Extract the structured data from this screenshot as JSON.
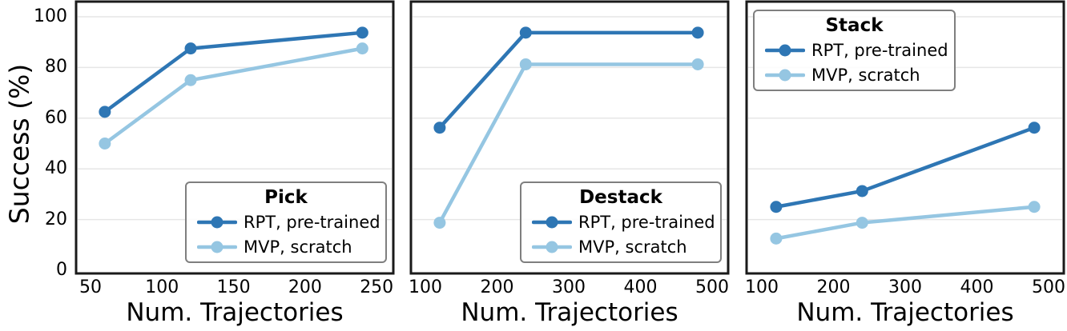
{
  "figure": {
    "ylabel": "Success (%)",
    "xlabel": "Num. Trajectories",
    "yticks": [
      0,
      20,
      40,
      60,
      80,
      100
    ],
    "ylim": [
      0,
      100
    ],
    "grid": "horizontal",
    "colors": {
      "rpt_blue": "#2e76b4",
      "mvp_light_blue": "#95c6e2",
      "gridline": "#e6e6e6",
      "spine": "#1a1a1a",
      "legend_border": "#7f7f7f",
      "text": "#000000"
    }
  },
  "chart_data": [
    {
      "type": "line",
      "title": "Pick",
      "xlabel": "Num. Trajectories",
      "ylabel": "Success (%)",
      "x": [
        60,
        120,
        240
      ],
      "xticks": [
        50,
        100,
        150,
        200,
        250
      ],
      "ylim": [
        0,
        105
      ],
      "grid": "horizontal",
      "legend_position": "lower right",
      "series": [
        {
          "name": "RPT, pre-trained",
          "values": [
            62.5,
            87.5,
            93.75
          ],
          "color": "#2e76b4"
        },
        {
          "name": "MVP, scratch",
          "values": [
            50,
            75,
            87.5
          ],
          "color": "#95c6e2"
        }
      ]
    },
    {
      "type": "line",
      "title": "Destack",
      "xlabel": "Num. Trajectories",
      "ylabel": "Success (%)",
      "x": [
        120,
        240,
        480
      ],
      "xticks": [
        100,
        200,
        300,
        400,
        500
      ],
      "ylim": [
        0,
        105
      ],
      "grid": "horizontal",
      "legend_position": "lower right",
      "series": [
        {
          "name": "RPT, pre-trained",
          "values": [
            56.25,
            93.75,
            93.75
          ],
          "color": "#2e76b4"
        },
        {
          "name": "MVP, scratch",
          "values": [
            18.75,
            81.25,
            81.25
          ],
          "color": "#95c6e2"
        }
      ]
    },
    {
      "type": "line",
      "title": "Stack",
      "xlabel": "Num. Trajectories",
      "ylabel": "Success (%)",
      "x": [
        120,
        240,
        480
      ],
      "xticks": [
        100,
        200,
        300,
        400,
        500
      ],
      "ylim": [
        0,
        105
      ],
      "grid": "horizontal",
      "legend_position": "upper left",
      "series": [
        {
          "name": "RPT, pre-trained",
          "values": [
            25,
            31.25,
            56.25
          ],
          "color": "#2e76b4"
        },
        {
          "name": "MVP, scratch",
          "values": [
            12.5,
            18.75,
            25
          ],
          "color": "#95c6e2"
        }
      ]
    }
  ]
}
